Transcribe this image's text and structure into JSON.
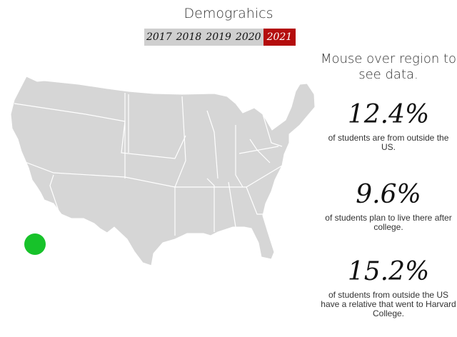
{
  "header": {
    "title": "Demograhics"
  },
  "years": [
    {
      "label": "2017",
      "active": false
    },
    {
      "label": "2018",
      "active": false
    },
    {
      "label": "2019",
      "active": false
    },
    {
      "label": "2020",
      "active": false
    },
    {
      "label": "2021",
      "active": true
    }
  ],
  "panel": {
    "hint": "Mouse over region to see data.",
    "stats": [
      {
        "value": "12.4%",
        "text": "of students are from outside the US."
      },
      {
        "value": "9.6%",
        "text": "of students plan to live there after college."
      },
      {
        "value": "15.2%",
        "text": "of students from outside the US have a relative that went to Harvard College."
      }
    ]
  },
  "colors": {
    "map_fill": "#d6d6d6",
    "border": "#ffffff",
    "active_year": "#b40d0d",
    "marker": "#17c22a"
  },
  "icons": {
    "marker": "green-dot-marker"
  }
}
